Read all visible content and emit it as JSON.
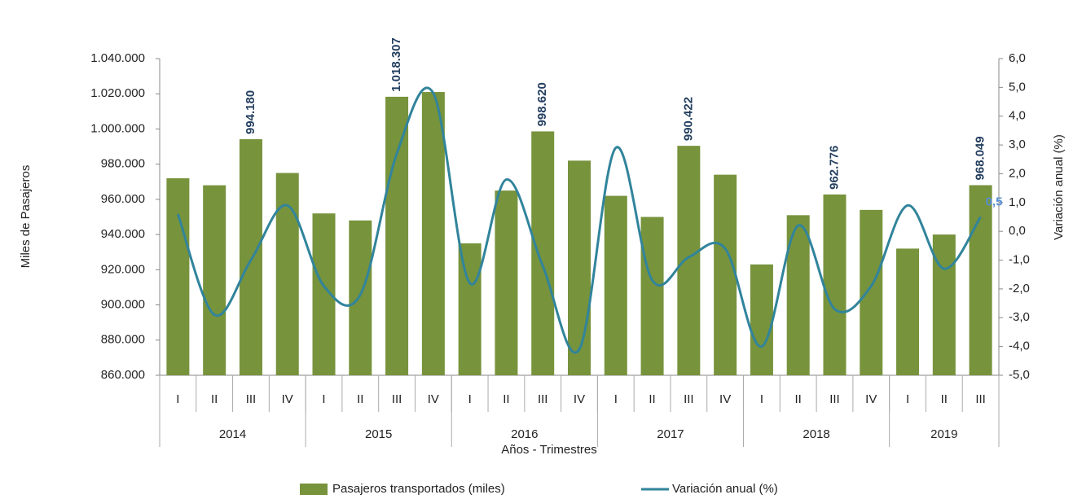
{
  "chart_data": {
    "type": "bar_line",
    "x_label": "Años - Trimestres",
    "y_label": "Miles de Pasajeros",
    "y2_label": "Variación anual (%)",
    "categories": [
      "I",
      "II",
      "III",
      "IV",
      "I",
      "II",
      "III",
      "IV",
      "I",
      "II",
      "III",
      "IV",
      "I",
      "II",
      "III",
      "IV",
      "I",
      "II",
      "III",
      "IV",
      "I",
      "II",
      "III"
    ],
    "years": [
      "2014",
      "2015",
      "2016",
      "2017",
      "2018",
      "2019"
    ],
    "series": [
      {
        "name": "Pasajeros transportados (miles)",
        "color": "#77933c",
        "type": "bar",
        "values": [
          972000,
          968000,
          994180,
          975000,
          952000,
          948000,
          1018307,
          1021000,
          935000,
          965000,
          998620,
          982000,
          962000,
          950000,
          990422,
          974000,
          923000,
          951000,
          962776,
          954000,
          932000,
          940000,
          968049
        ],
        "value_labels": [
          null,
          null,
          "994.180",
          null,
          null,
          null,
          "1.018.307",
          null,
          null,
          null,
          "998.620",
          null,
          null,
          null,
          "990.422",
          null,
          null,
          null,
          "962.776",
          null,
          null,
          null,
          "968.049"
        ]
      },
      {
        "name": "Variación anual (%)",
        "color": "#31849b",
        "type": "line",
        "axis": "y2",
        "values": [
          0.6,
          -2.9,
          -1.0,
          0.9,
          -1.9,
          -2.2,
          2.7,
          4.8,
          -1.8,
          1.8,
          -1.2,
          -4.1,
          2.9,
          -1.7,
          -0.9,
          -0.6,
          -4.0,
          0.2,
          -2.7,
          -1.9,
          0.9,
          -1.3,
          0.5
        ],
        "value_labels": [
          null,
          null,
          null,
          null,
          null,
          null,
          null,
          null,
          null,
          null,
          null,
          null,
          null,
          null,
          null,
          null,
          null,
          null,
          null,
          null,
          null,
          null,
          "0,5"
        ]
      }
    ],
    "ylim": [
      860000,
      1040000
    ],
    "yticks": [
      {
        "value": 860000,
        "label": "860.000"
      },
      {
        "value": 880000,
        "label": "880.000"
      },
      {
        "value": 900000,
        "label": "900.000"
      },
      {
        "value": 920000,
        "label": "920.000"
      },
      {
        "value": 940000,
        "label": "940.000"
      },
      {
        "value": 960000,
        "label": "960.000"
      },
      {
        "value": 980000,
        "label": "980.000"
      },
      {
        "value": 1000000,
        "label": "1.000.000"
      },
      {
        "value": 1020000,
        "label": "1.020.000"
      },
      {
        "value": 1040000,
        "label": "1.040.000"
      }
    ],
    "y2lim": [
      -5,
      6
    ],
    "y2ticks": [
      {
        "value": -5,
        "label": "-5,0"
      },
      {
        "value": -4,
        "label": "-4,0"
      },
      {
        "value": -3,
        "label": "-3,0"
      },
      {
        "value": -2,
        "label": "-2,0"
      },
      {
        "value": -1,
        "label": "-1,0"
      },
      {
        "value": 0,
        "label": "0,0"
      },
      {
        "value": 1,
        "label": "1,0"
      },
      {
        "value": 2,
        "label": "2,0"
      },
      {
        "value": 3,
        "label": "3,0"
      },
      {
        "value": 4,
        "label": "4,0"
      },
      {
        "value": 5,
        "label": "5,0"
      },
      {
        "value": 6,
        "label": "6,0"
      }
    ]
  }
}
